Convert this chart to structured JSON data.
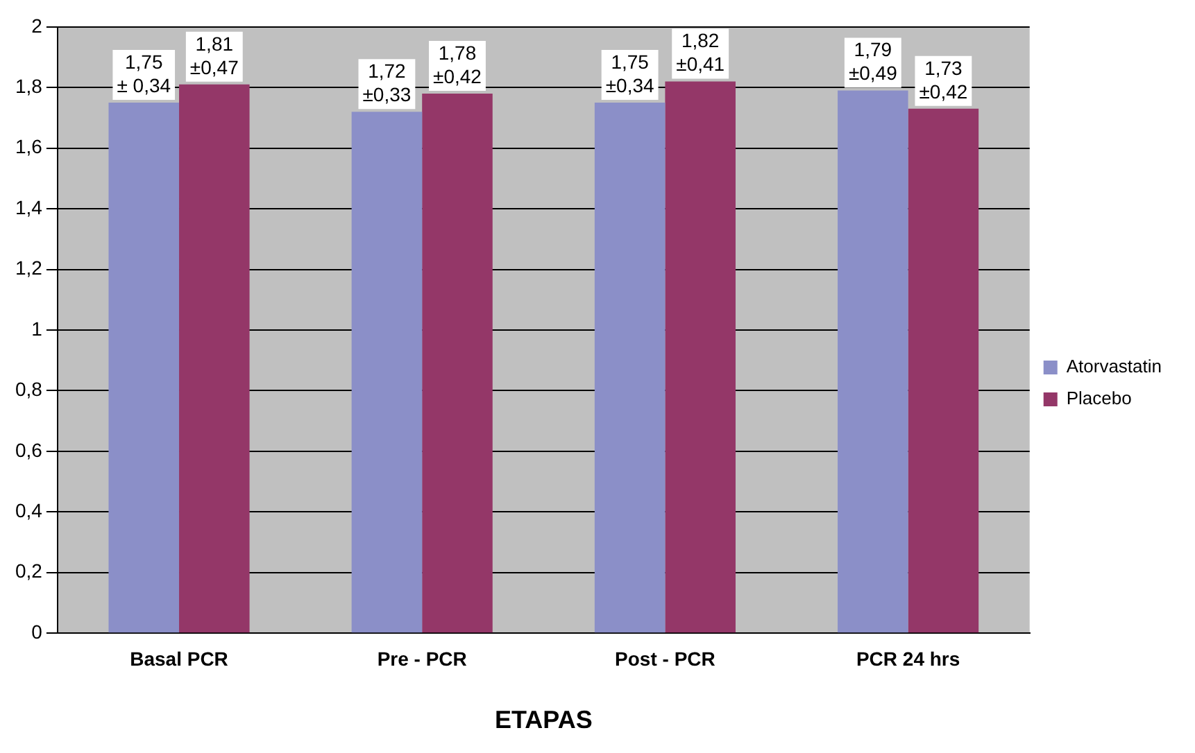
{
  "chart_data": {
    "type": "bar",
    "xlabel": "ETAPAS",
    "categories": [
      "Basal PCR",
      "Pre - PCR",
      "Post - PCR",
      "PCR 24 hrs"
    ],
    "series": [
      {
        "name": "Atorvastatin",
        "color": "#8b8fc8",
        "values": [
          1.75,
          1.72,
          1.75,
          1.79
        ],
        "value_labels": [
          "1,75\n± 0,34",
          "1,72\n±0,33",
          "1,75\n±0,34",
          "1,79\n±0,49"
        ]
      },
      {
        "name": "Placebo",
        "color": "#943768",
        "values": [
          1.81,
          1.78,
          1.82,
          1.73
        ],
        "value_labels": [
          "1,81\n±0,47",
          "1,78\n±0,42",
          "1,82\n±0,41",
          "1,73\n±0,42"
        ]
      }
    ],
    "ylim": [
      0,
      2
    ],
    "yticks": [
      {
        "value": 0,
        "label": "0"
      },
      {
        "value": 0.2,
        "label": "0,2"
      },
      {
        "value": 0.4,
        "label": "0,4"
      },
      {
        "value": 0.6,
        "label": "0,6"
      },
      {
        "value": 0.8,
        "label": "0,8"
      },
      {
        "value": 1,
        "label": "1"
      },
      {
        "value": 1.2,
        "label": "1,2"
      },
      {
        "value": 1.4,
        "label": "1,4"
      },
      {
        "value": 1.6,
        "label": "1,6"
      },
      {
        "value": 1.8,
        "label": "1,8"
      },
      {
        "value": 2,
        "label": "2"
      }
    ],
    "grid": "y",
    "legend": "right"
  }
}
